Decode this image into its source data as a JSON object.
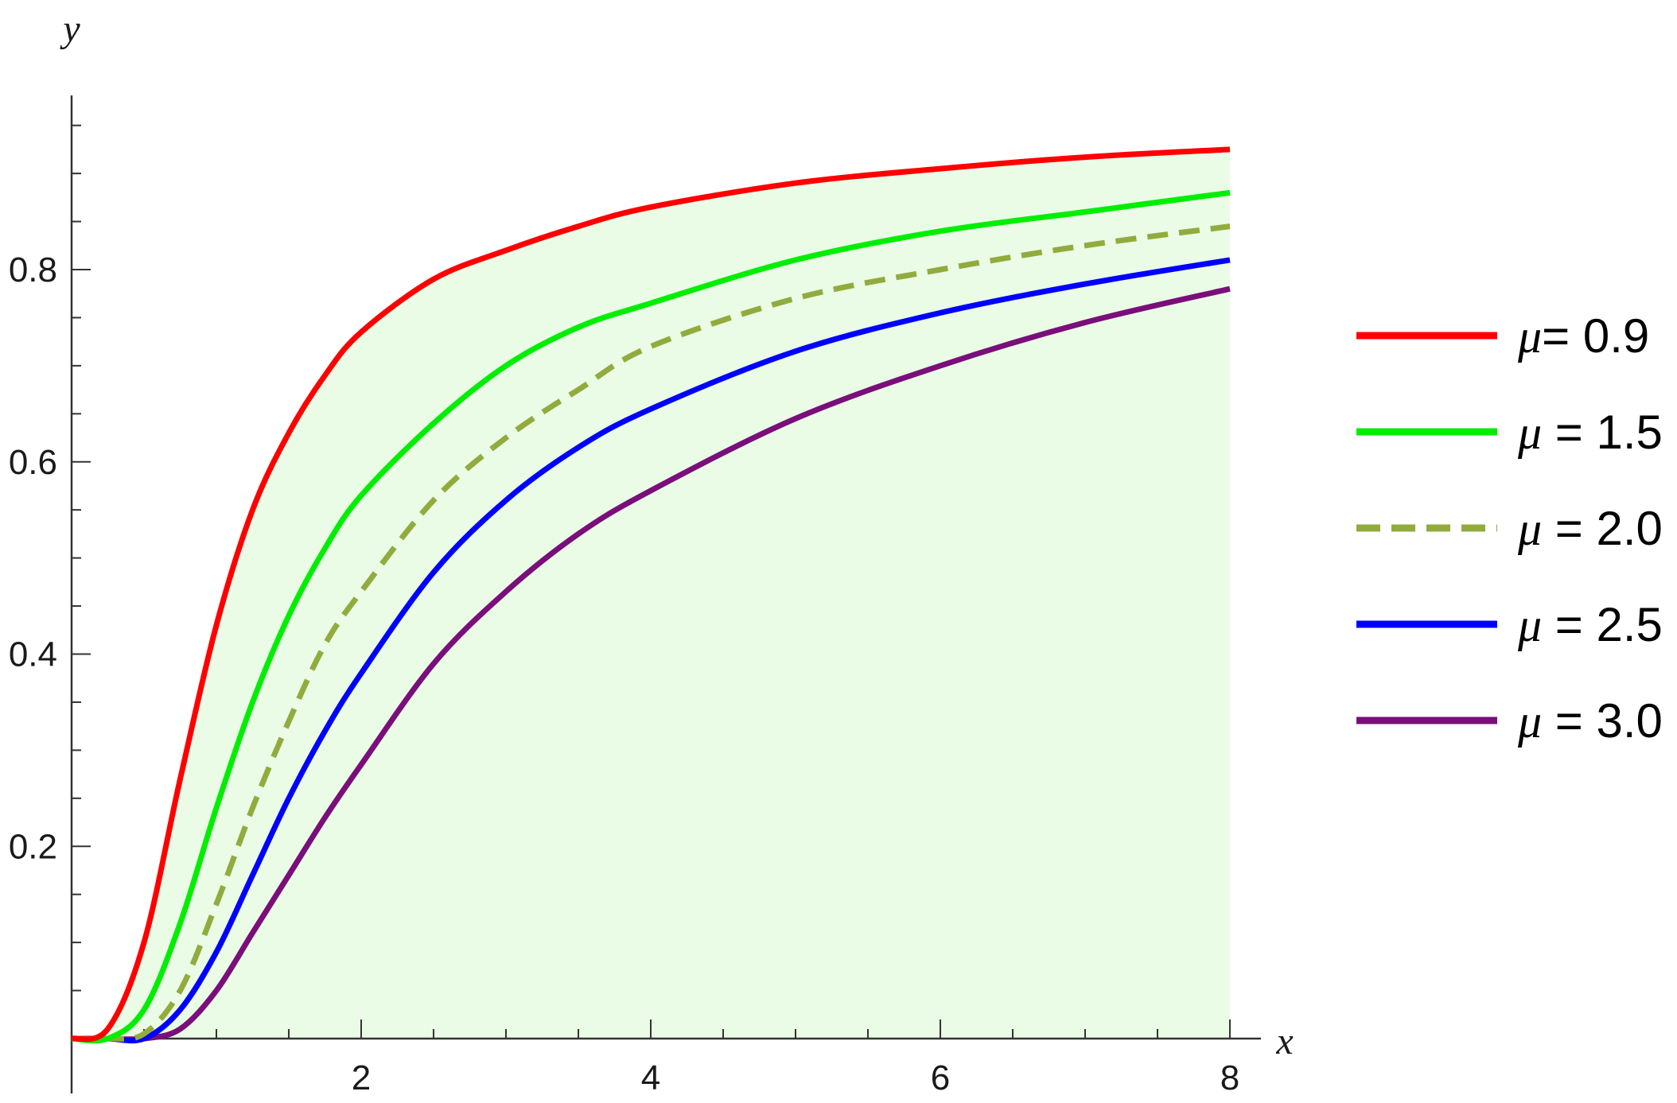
{
  "chart_data": {
    "type": "line",
    "xlabel": "x",
    "ylabel": "y",
    "xlim": [
      0,
      8
    ],
    "ylim": [
      0,
      0.97
    ],
    "x_ticks": [
      2,
      4,
      6,
      8
    ],
    "x_tick_labels": [
      "2",
      "4",
      "6",
      "8"
    ],
    "y_ticks": [
      0.2,
      0.4,
      0.6,
      0.8
    ],
    "y_tick_labels": [
      "0.2",
      "0.4",
      "0.6",
      "0.8"
    ],
    "grid": false,
    "legend_position": "right",
    "filled_region": {
      "color": "#eafbe6",
      "between": "x-axis and top curve"
    },
    "series": [
      {
        "name": "μ= 0.9",
        "legend_symbol": "μ",
        "legend_value": "= 0.9",
        "color": "#ff0000",
        "dash": "solid",
        "x": [
          0,
          0.25,
          0.5,
          0.75,
          1,
          1.25,
          1.5,
          1.75,
          2,
          2.5,
          3,
          3.5,
          4,
          5,
          6,
          7,
          8
        ],
        "y": [
          0,
          0.01,
          0.1,
          0.27,
          0.43,
          0.55,
          0.63,
          0.69,
          0.735,
          0.79,
          0.82,
          0.845,
          0.865,
          0.89,
          0.905,
          0.917,
          0.925
        ]
      },
      {
        "name": "μ = 1.5",
        "legend_symbol": "μ",
        "legend_value": " = 1.5",
        "color": "#00ee00",
        "dash": "solid",
        "x": [
          0,
          0.25,
          0.5,
          0.75,
          1,
          1.25,
          1.5,
          1.75,
          2,
          2.5,
          3,
          3.5,
          4,
          5,
          6,
          7,
          8
        ],
        "y": [
          0,
          0.0,
          0.03,
          0.12,
          0.24,
          0.35,
          0.44,
          0.51,
          0.565,
          0.64,
          0.7,
          0.74,
          0.765,
          0.81,
          0.84,
          0.86,
          0.88
        ]
      },
      {
        "name": "μ = 2.0",
        "legend_symbol": "μ",
        "legend_value": " = 2.0",
        "color": "#92ab3d",
        "dash": "dashed",
        "x": [
          0,
          0.25,
          0.5,
          0.75,
          1,
          1.25,
          1.5,
          1.75,
          2,
          2.5,
          3,
          3.5,
          4,
          5,
          6,
          7,
          8
        ],
        "y": [
          0,
          0.0,
          0.005,
          0.05,
          0.14,
          0.24,
          0.33,
          0.41,
          0.465,
          0.56,
          0.625,
          0.675,
          0.72,
          0.77,
          0.8,
          0.825,
          0.845
        ]
      },
      {
        "name": "μ = 2.5",
        "legend_symbol": "μ",
        "legend_value": " = 2.5",
        "color": "#0000ff",
        "dash": "solid",
        "x": [
          0,
          0.25,
          0.5,
          0.75,
          1,
          1.25,
          1.5,
          1.75,
          2,
          2.5,
          3,
          3.5,
          4,
          5,
          6,
          7,
          8
        ],
        "y": [
          0,
          0.0,
          0.0,
          0.03,
          0.09,
          0.17,
          0.25,
          0.32,
          0.38,
          0.485,
          0.56,
          0.615,
          0.655,
          0.715,
          0.755,
          0.785,
          0.81
        ]
      },
      {
        "name": "μ = 3.0",
        "legend_symbol": "μ",
        "legend_value": " = 3.0",
        "color": "#7a0e7a",
        "dash": "solid",
        "x": [
          0,
          0.25,
          0.5,
          0.75,
          1,
          1.25,
          1.5,
          1.75,
          2,
          2.5,
          3,
          3.5,
          4,
          5,
          6,
          7,
          8
        ],
        "y": [
          0,
          0.0,
          0.0,
          0.01,
          0.05,
          0.11,
          0.17,
          0.23,
          0.285,
          0.39,
          0.465,
          0.525,
          0.57,
          0.645,
          0.7,
          0.745,
          0.78
        ]
      }
    ]
  }
}
